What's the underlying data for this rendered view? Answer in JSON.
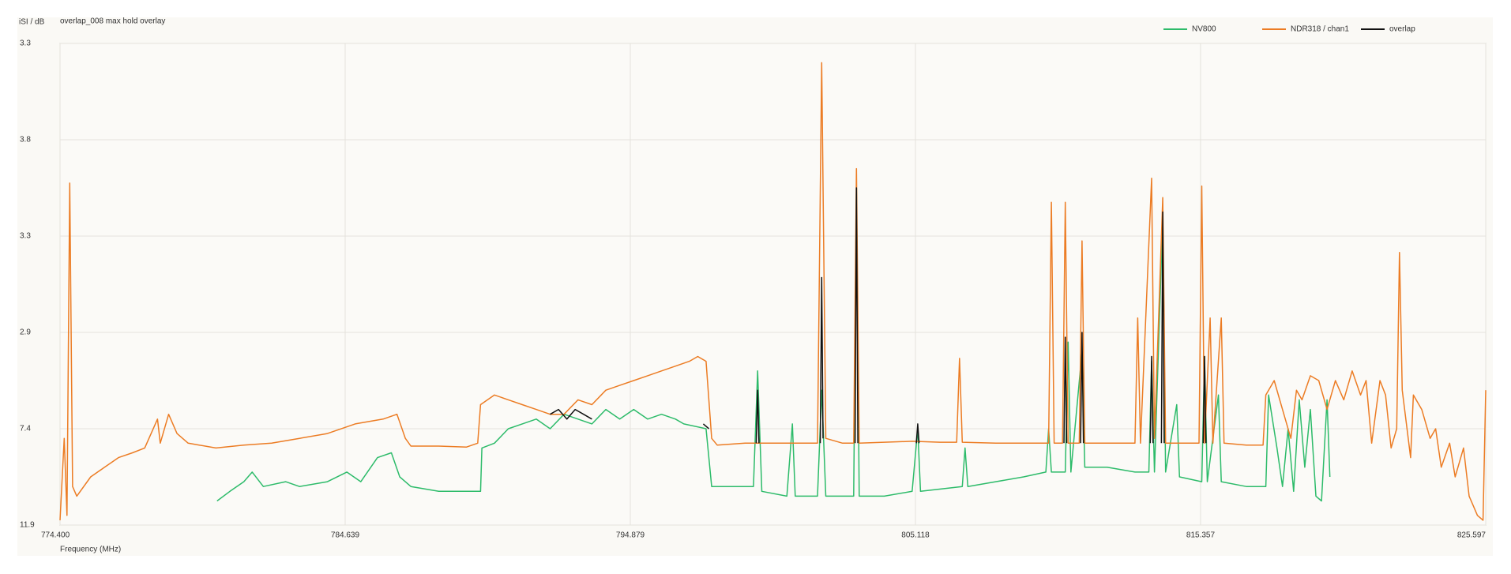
{
  "chart_data": {
    "type": "line",
    "title": "overlap_008 max hold overlay",
    "y_label": "iSI / dB",
    "x_label": "Frequency (MHz)",
    "xlim": [
      774.4,
      825.597
    ],
    "xticks": [
      {
        "value": 774.4,
        "label": "774.400"
      },
      784.639,
      794.879,
      805.118,
      815.357,
      825.597
    ],
    "ylim": [
      0,
      5
    ],
    "yticks": [
      {
        "value": 0,
        "label": "11.9"
      },
      {
        "value": 1,
        "label": "7.4"
      },
      {
        "value": 2,
        "label": "2.9"
      },
      {
        "value": 3,
        "label": "3.3"
      },
      {
        "value": 4,
        "label": "3.8"
      },
      {
        "value": 5,
        "label": "3.3"
      }
    ],
    "grid": true,
    "legend": "top-right",
    "series": [
      {
        "name": "NV800",
        "color": "#2dbb6a",
        "x": [
          780.04,
          780.5,
          781.0,
          781.3,
          781.7,
          782.5,
          783.0,
          784.0,
          784.7,
          785.2,
          785.8,
          786.3,
          786.6,
          787.0,
          788.0,
          789.0,
          789.5,
          789.55,
          790.0,
          790.5,
          791.0,
          791.5,
          792.0,
          792.5,
          793.0,
          793.5,
          794.0,
          794.5,
          795.0,
          795.5,
          796.0,
          796.5,
          796.8,
          797.6,
          797.8,
          798.5,
          799.3,
          799.45,
          799.6,
          800.5,
          800.7,
          800.8,
          801.6,
          801.75,
          801.9,
          802.9,
          803.0,
          803.1,
          804.0,
          805.0,
          805.2,
          805.3,
          806.8,
          806.9,
          807.0,
          808.0,
          809.0,
          809.8,
          809.9,
          810.0,
          810.5,
          810.6,
          810.7,
          811.1,
          811.2,
          812.0,
          813.0,
          813.5,
          813.6,
          813.7,
          814.0,
          814.1,
          814.5,
          814.6,
          815.4,
          815.5,
          815.6,
          816.0,
          816.1,
          817.0,
          817.7,
          817.8,
          818.1,
          818.3,
          818.5,
          818.7,
          818.9,
          819.1,
          819.3,
          819.5,
          819.7,
          819.9,
          820.0
        ],
        "values": [
          0.25,
          0.35,
          0.45,
          0.55,
          0.4,
          0.45,
          0.4,
          0.45,
          0.55,
          0.45,
          0.7,
          0.75,
          0.5,
          0.4,
          0.35,
          0.35,
          0.35,
          0.8,
          0.85,
          1.0,
          1.05,
          1.1,
          1.0,
          1.15,
          1.1,
          1.05,
          1.2,
          1.1,
          1.2,
          1.1,
          1.15,
          1.1,
          1.05,
          1.0,
          0.4,
          0.4,
          0.4,
          1.6,
          0.35,
          0.3,
          1.05,
          0.3,
          0.3,
          1.4,
          0.3,
          0.3,
          3.5,
          0.3,
          0.3,
          0.35,
          1.0,
          0.35,
          0.4,
          0.8,
          0.4,
          0.45,
          0.5,
          0.55,
          1.0,
          0.55,
          0.55,
          1.9,
          0.55,
          1.8,
          0.6,
          0.6,
          0.55,
          0.55,
          1.7,
          0.55,
          3.2,
          0.55,
          1.25,
          0.5,
          0.45,
          1.75,
          0.45,
          1.35,
          0.45,
          0.4,
          0.4,
          1.35,
          0.8,
          0.4,
          1.0,
          0.35,
          1.3,
          0.6,
          1.2,
          0.3,
          0.25,
          1.3,
          0.5
        ]
      },
      {
        "name": "NDR318 / chan1",
        "color": "#ec7c24",
        "x": [
          774.4,
          774.55,
          774.65,
          774.75,
          774.85,
          775.0,
          775.5,
          776.0,
          776.5,
          777.0,
          777.44,
          777.9,
          778.0,
          778.3,
          778.6,
          779.0,
          780.0,
          781.0,
          782.0,
          783.0,
          784.0,
          785.0,
          786.0,
          786.5,
          786.8,
          787.0,
          788.0,
          789.0,
          789.4,
          789.5,
          790.0,
          790.5,
          791.0,
          791.5,
          792.0,
          792.5,
          793.0,
          793.5,
          794.0,
          794.5,
          795.0,
          795.5,
          796.0,
          796.5,
          797.0,
          797.3,
          797.6,
          797.8,
          798.0,
          799.0,
          800.0,
          801.0,
          801.6,
          801.75,
          801.9,
          802.5,
          802.9,
          803.0,
          803.1,
          805.0,
          806.0,
          806.6,
          806.7,
          806.8,
          808.0,
          809.0,
          809.9,
          810.0,
          810.1,
          810.4,
          810.5,
          810.6,
          811.0,
          811.1,
          811.2,
          812.5,
          813.0,
          813.1,
          813.2,
          813.6,
          813.7,
          814.0,
          814.1,
          815.3,
          815.4,
          815.5,
          815.7,
          815.8,
          816.1,
          816.2,
          817.0,
          817.6,
          817.7,
          818.0,
          818.3,
          818.6,
          818.8,
          819.0,
          819.3,
          819.6,
          819.9,
          820.2,
          820.5,
          820.8,
          821.1,
          821.3,
          821.5,
          821.8,
          822.0,
          822.2,
          822.4,
          822.5,
          822.6,
          822.9,
          823.0,
          823.3,
          823.6,
          823.8,
          824.0,
          824.3,
          824.5,
          824.8,
          825.0,
          825.3,
          825.5,
          825.597
        ],
        "values": [
          0.05,
          0.9,
          0.1,
          3.55,
          0.4,
          0.3,
          0.5,
          0.6,
          0.7,
          0.75,
          0.8,
          1.1,
          0.85,
          1.15,
          0.95,
          0.85,
          0.8,
          0.83,
          0.85,
          0.9,
          0.95,
          1.05,
          1.1,
          1.15,
          0.9,
          0.82,
          0.82,
          0.81,
          0.85,
          1.25,
          1.35,
          1.3,
          1.25,
          1.2,
          1.15,
          1.15,
          1.3,
          1.25,
          1.4,
          1.45,
          1.5,
          1.55,
          1.6,
          1.65,
          1.7,
          1.75,
          1.7,
          0.9,
          0.83,
          0.85,
          0.85,
          0.85,
          0.85,
          4.8,
          0.9,
          0.85,
          0.85,
          3.7,
          0.85,
          0.87,
          0.86,
          0.86,
          1.73,
          0.86,
          0.85,
          0.85,
          0.85,
          3.35,
          0.85,
          0.85,
          3.35,
          0.85,
          0.85,
          2.95,
          0.85,
          0.85,
          0.85,
          2.15,
          0.85,
          3.6,
          0.9,
          3.4,
          0.85,
          0.85,
          3.52,
          0.85,
          2.15,
          0.85,
          2.15,
          0.85,
          0.83,
          0.83,
          1.35,
          1.5,
          1.2,
          0.9,
          1.4,
          1.3,
          1.55,
          1.5,
          1.2,
          1.5,
          1.3,
          1.6,
          1.35,
          1.5,
          0.85,
          1.5,
          1.35,
          0.8,
          1.0,
          2.83,
          1.4,
          0.7,
          1.35,
          1.2,
          0.9,
          1.0,
          0.6,
          0.85,
          0.5,
          0.8,
          0.3,
          0.1,
          0.05,
          1.4
        ]
      },
      {
        "name": "overlap",
        "color": "#111111",
        "x": [
          792.0,
          792.3,
          792.6,
          792.9,
          793.2,
          793.5,
          793.6,
          797.5,
          797.7,
          798.0,
          799.4,
          799.45,
          799.5,
          800.0,
          801.7,
          801.75,
          801.8,
          802.5,
          802.95,
          803.0,
          803.05,
          804.0,
          805.15,
          805.2,
          805.25,
          806.0,
          810.45,
          810.5,
          810.55,
          810.8,
          811.05,
          811.1,
          811.15,
          812.0,
          813.55,
          813.6,
          813.65,
          813.8,
          813.95,
          814.0,
          814.05,
          814.5,
          815.45,
          815.5,
          815.55
        ],
        "values": [
          1.15,
          1.2,
          1.1,
          1.2,
          1.15,
          1.1,
          null,
          1.05,
          1.0,
          null,
          0.85,
          1.4,
          0.85,
          null,
          0.85,
          2.57,
          0.9,
          null,
          0.85,
          3.5,
          0.85,
          null,
          0.85,
          1.05,
          0.85,
          null,
          0.85,
          1.95,
          0.85,
          null,
          0.85,
          2.0,
          0.85,
          null,
          0.85,
          1.75,
          0.85,
          null,
          0.85,
          3.25,
          0.85,
          null,
          0.85,
          1.75,
          0.85
        ]
      }
    ]
  }
}
